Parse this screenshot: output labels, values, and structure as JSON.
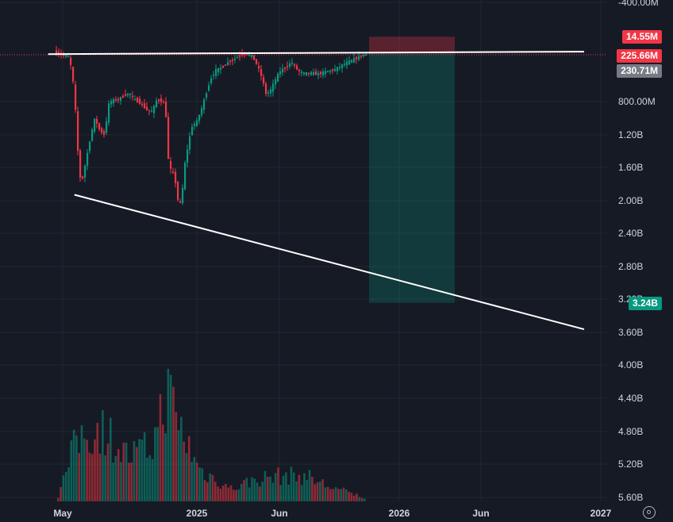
{
  "chart_data": {
    "type": "candlestick",
    "y_axis": {
      "inverted": true,
      "ticks": [
        "-400.00M",
        "800.00M",
        "1.20B",
        "1.60B",
        "2.00B",
        "2.40B",
        "2.80B",
        "3.20B",
        "3.60B",
        "4.00B",
        "4.40B",
        "4.80B",
        "5.20B",
        "5.60B"
      ]
    },
    "x_axis": {
      "ticks": [
        "May",
        "2025",
        "Jun",
        "2026",
        "Jun",
        "2027"
      ]
    },
    "price_tags": [
      {
        "label": "14.55M",
        "color": "#f23645"
      },
      {
        "label": "225.66M",
        "color": "#f23645"
      },
      {
        "label": "230.71M",
        "color": "#787b86"
      },
      {
        "label": "3.24B",
        "color": "#089981"
      }
    ],
    "trendlines": [
      {
        "name": "upper",
        "from": {
          "date": "2024-04-10",
          "value": 225000000
        },
        "to": {
          "date": "2026-11-25",
          "value": 195000000
        }
      },
      {
        "name": "lower",
        "from": {
          "date": "2024-05-27",
          "value": 1930000000
        },
        "to": {
          "date": "2026-11-25",
          "value": 3560000000
        }
      }
    ],
    "position": {
      "type": "short",
      "entry": 225660000,
      "stop": 14550000,
      "target": 3240000000
    },
    "candles": [],
    "volume": []
  },
  "colors": {
    "up": "#089981",
    "down": "#f23645",
    "background": "#161a25",
    "grid": "#232632",
    "text": "#d1d4dc"
  },
  "icons": {
    "settings": "gear-icon"
  }
}
